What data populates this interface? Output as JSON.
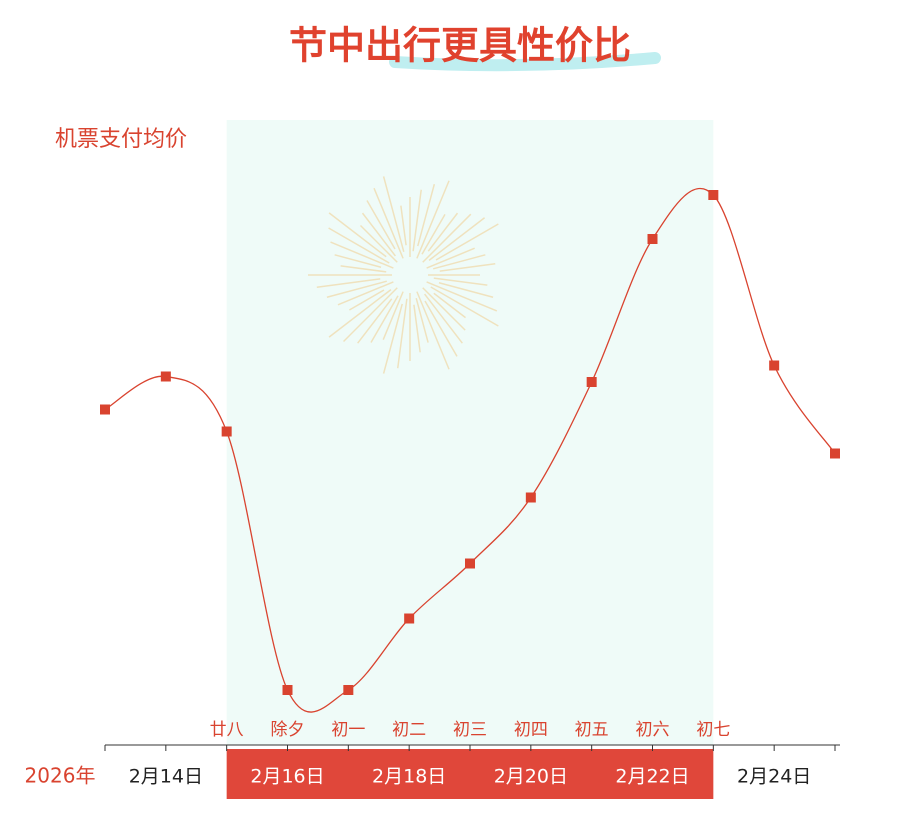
{
  "chart_data": {
    "type": "line",
    "title": "节中出行更具性价比",
    "y_label": "机票支付均价",
    "year_label": "2026年",
    "categories": [
      null,
      "2月14日",
      null,
      "2月16日",
      null,
      "2月18日",
      null,
      "2月20日",
      null,
      "2月22日",
      null,
      "2月24日",
      null
    ],
    "lunar_labels": [
      null,
      null,
      "廿八",
      "除夕",
      "初一",
      "初二",
      "初三",
      "初四",
      "初五",
      "初六",
      "初七",
      null,
      null
    ],
    "values": [
      61,
      67,
      57,
      10,
      10,
      23,
      33,
      45,
      66,
      92,
      100,
      69,
      53
    ],
    "color": "#d9432f",
    "ylim": [
      0,
      110
    ],
    "highlight_range": [
      2,
      10
    ]
  }
}
